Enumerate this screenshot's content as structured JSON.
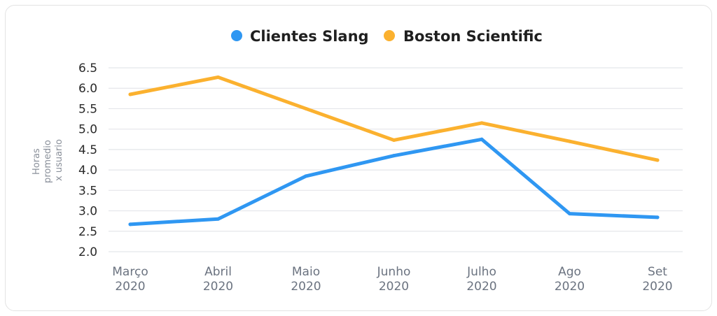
{
  "chart_data": {
    "type": "line",
    "title": "",
    "xlabel": "",
    "ylabel": [
      "Horas",
      "promedio",
      "x usuario"
    ],
    "categories": [
      [
        "Março",
        "2020"
      ],
      [
        "Abril",
        "2020"
      ],
      [
        "Maio",
        "2020"
      ],
      [
        "Junho",
        "2020"
      ],
      [
        "Julho",
        "2020"
      ],
      [
        "Ago",
        "2020"
      ],
      [
        "Set",
        "2020"
      ]
    ],
    "yticks": [
      "6.5",
      "6.0",
      "5.5",
      "5.0",
      "4.5",
      "4.0",
      "3.5",
      "3.0",
      "2.5",
      "2.0"
    ],
    "ylim": [
      2.0,
      6.5
    ],
    "grid": true,
    "legend_position": "top-center",
    "series": [
      {
        "name": "Clientes Slang",
        "color": "#2f97f2",
        "values": [
          2.67,
          2.8,
          3.85,
          4.35,
          4.75,
          2.93,
          2.84
        ]
      },
      {
        "name": "Boston Scientific",
        "color": "#fbb12f",
        "values": [
          5.85,
          6.27,
          5.5,
          4.73,
          5.15,
          4.7,
          4.24
        ]
      }
    ]
  }
}
